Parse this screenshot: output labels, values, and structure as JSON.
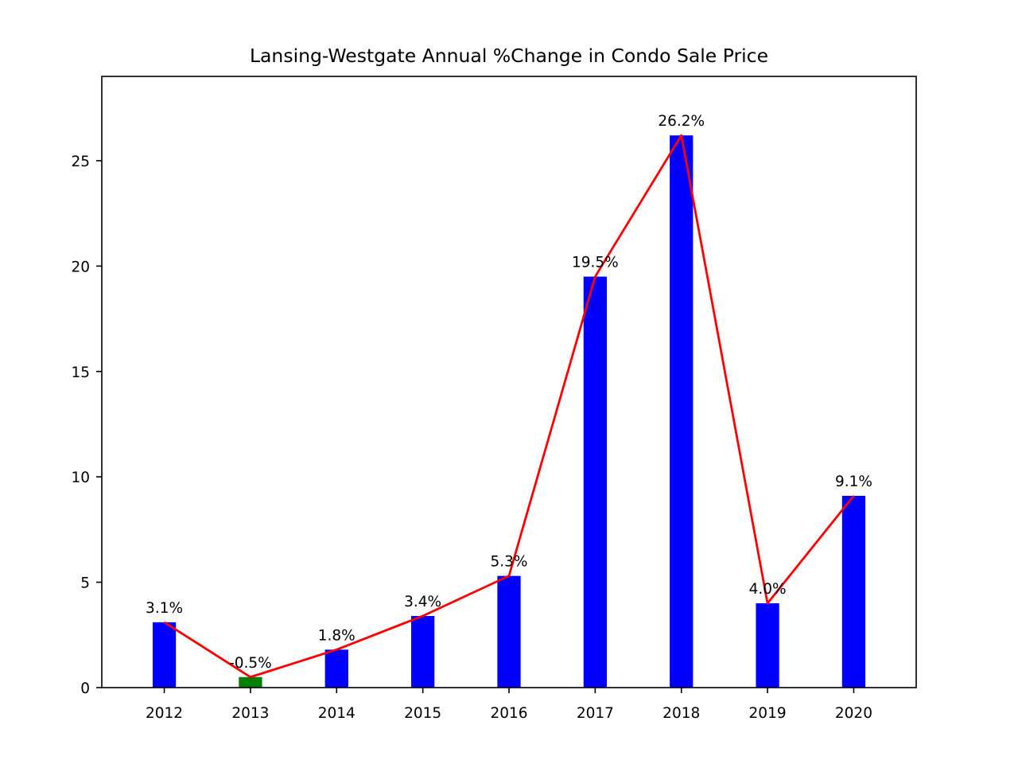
{
  "chart_data": {
    "type": "bar",
    "title": "Lansing-Westgate Annual %Change in Condo Sale Price",
    "xlabel": "",
    "ylabel": "",
    "categories": [
      "2012",
      "2013",
      "2014",
      "2015",
      "2016",
      "2017",
      "2018",
      "2019",
      "2020"
    ],
    "values": [
      3.1,
      -0.5,
      1.8,
      3.4,
      5.3,
      19.5,
      26.2,
      4.0,
      9.1
    ],
    "bar_heights": [
      3.1,
      0.5,
      1.8,
      3.4,
      5.3,
      19.5,
      26.2,
      4.0,
      9.1
    ],
    "data_labels": [
      "3.1%",
      "-0.5%",
      "1.8%",
      "3.4%",
      "5.3%",
      "19.5%",
      "26.2%",
      "4.0%",
      "9.1%"
    ],
    "line_values": [
      3.1,
      0.5,
      1.8,
      3.4,
      5.3,
      19.5,
      26.2,
      4.0,
      9.1
    ],
    "ylim": [
      0,
      29
    ],
    "yticks": [
      0,
      5,
      10,
      15,
      20,
      25
    ],
    "grid": false,
    "colors": {
      "positive_bar": "#0000ff",
      "negative_bar": "#008000",
      "line": "#ff0000",
      "axes": "#000000"
    }
  }
}
